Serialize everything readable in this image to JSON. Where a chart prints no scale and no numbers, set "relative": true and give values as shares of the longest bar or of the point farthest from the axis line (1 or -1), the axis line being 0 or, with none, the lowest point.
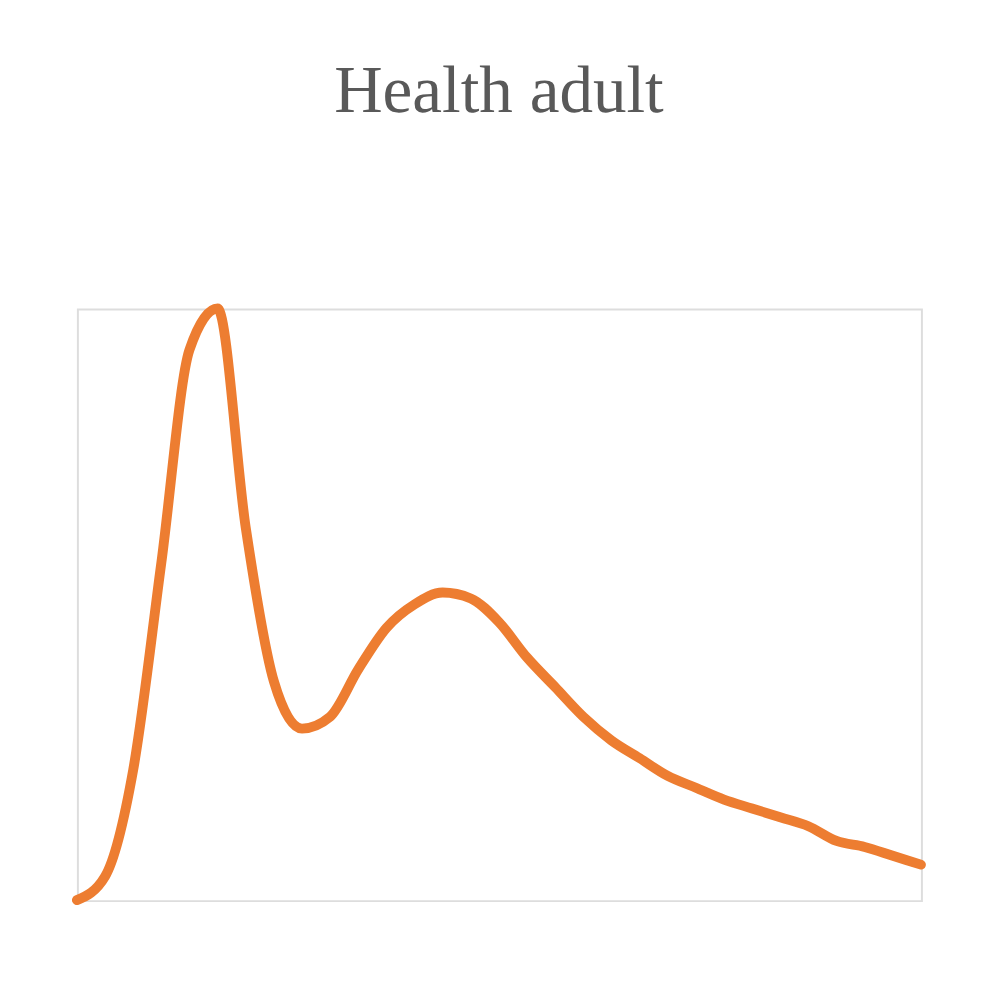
{
  "chart_data": {
    "type": "line",
    "title": "Health adult",
    "relative": true,
    "legend": false,
    "grid": false,
    "line_style": "solid",
    "marker": "none",
    "categories": [
      null,
      null,
      null,
      null,
      null,
      null,
      null,
      null,
      null,
      null,
      null,
      null,
      null,
      null,
      null,
      null,
      null,
      null,
      null,
      null,
      null,
      null,
      null,
      null,
      null,
      null,
      null,
      null,
      null,
      null,
      null
    ],
    "series": [
      {
        "color": "#ed7d31",
        "values": [
          0,
          0.04,
          0.22,
          0.57,
          0.93,
          1.0,
          0.63,
          0.37,
          0.29,
          0.31,
          0.39,
          0.46,
          0.5,
          0.52,
          0.51,
          0.47,
          0.41,
          0.36,
          0.31,
          0.27,
          0.24,
          0.21,
          0.19,
          0.17,
          0.155,
          0.14,
          0.125,
          0.1,
          0.09,
          0.075,
          0.06
        ]
      }
    ]
  }
}
